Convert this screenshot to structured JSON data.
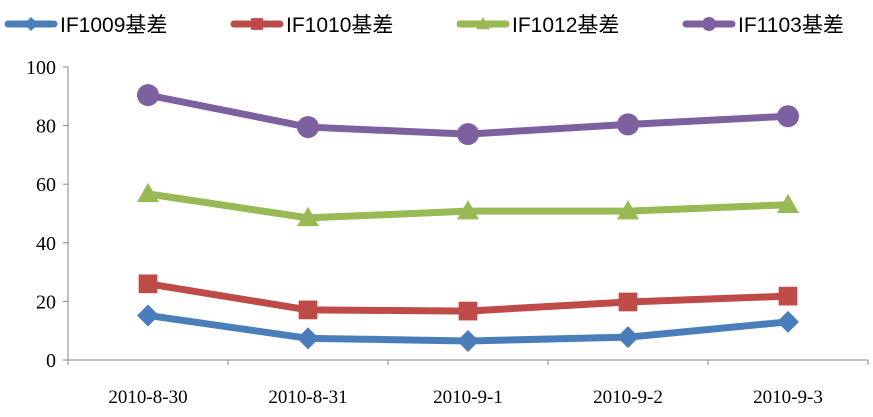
{
  "chart_data": {
    "type": "line",
    "title": "",
    "xlabel": "",
    "ylabel": "",
    "categories": [
      "2010-8-30",
      "2010-8-31",
      "2010-9-1",
      "2010-9-2",
      "2010-9-3"
    ],
    "ylim": [
      0,
      100
    ],
    "yticks": [
      0,
      20,
      40,
      60,
      80,
      100
    ],
    "grid": false,
    "legend_position": "top",
    "series": [
      {
        "name": "IF1009基差",
        "color": "#4a7ebb",
        "marker": "diamond",
        "values": [
          15.2,
          7.4,
          6.5,
          7.8,
          13.0
        ]
      },
      {
        "name": "IF1010基差",
        "color": "#be4b48",
        "marker": "square",
        "values": [
          26.0,
          17.1,
          16.7,
          19.8,
          21.8
        ]
      },
      {
        "name": "IF1012基差",
        "color": "#98b954",
        "marker": "triangle",
        "values": [
          56.7,
          48.5,
          50.8,
          50.8,
          53.0
        ]
      },
      {
        "name": "IF1103基差",
        "color": "#7d60a0",
        "marker": "circle",
        "values": [
          90.4,
          79.5,
          77.1,
          80.4,
          83.2
        ]
      }
    ]
  }
}
